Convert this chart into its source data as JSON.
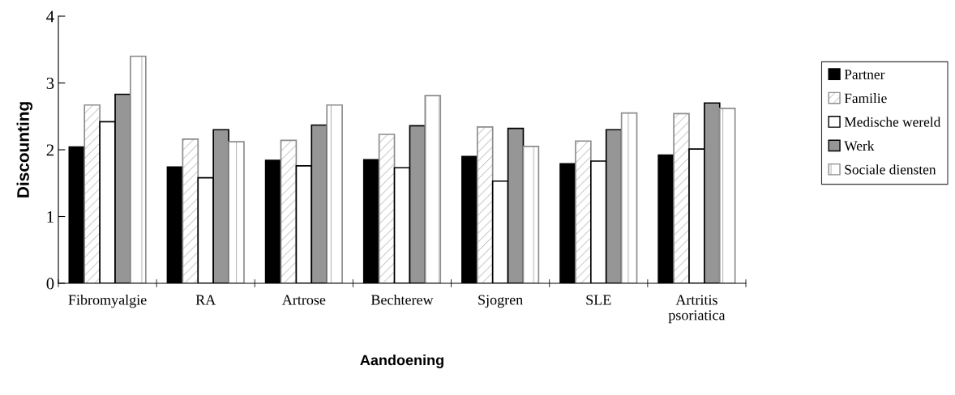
{
  "chart_data": {
    "type": "bar",
    "xlabel": "Aandoening",
    "ylabel": "Discounting",
    "categories": [
      "Fibromyalgie",
      "RA",
      "Artrose",
      "Bechterew",
      "Sjogren",
      "SLE",
      "Artritis\npsoriatica"
    ],
    "series": [
      {
        "name": "Partner",
        "color": "#000000",
        "values": [
          2.04,
          1.74,
          1.84,
          1.85,
          1.9,
          1.79,
          1.92
        ]
      },
      {
        "name": "Familie",
        "color": "#8c8c8c",
        "values": [
          2.67,
          2.16,
          2.14,
          2.23,
          2.34,
          2.13,
          2.54
        ]
      },
      {
        "name": "Medische wereld",
        "color": "#ffffff",
        "values": [
          2.42,
          1.58,
          1.76,
          1.73,
          1.53,
          1.83,
          2.01
        ]
      },
      {
        "name": "Werk",
        "color": "#969696",
        "values": [
          2.83,
          2.3,
          2.37,
          2.36,
          2.32,
          2.3,
          2.7
        ]
      },
      {
        "name": "Sociale diensten",
        "color": "#8c8c8c",
        "values": [
          3.4,
          2.12,
          2.67,
          2.81,
          2.05,
          2.55,
          2.62
        ]
      }
    ],
    "ylim": [
      0,
      4
    ],
    "yticks": [
      0,
      1,
      2,
      3,
      4
    ],
    "grid": false,
    "legend": "right"
  }
}
